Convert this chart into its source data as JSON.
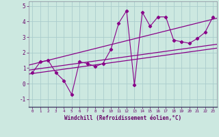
{
  "xlabel": "Windchill (Refroidissement éolien,°C)",
  "background_color": "#cce8e0",
  "line_color": "#880088",
  "grid_color": "#aacccc",
  "x_data": [
    0,
    1,
    2,
    3,
    4,
    5,
    6,
    7,
    8,
    9,
    10,
    11,
    12,
    13,
    14,
    15,
    16,
    17,
    18,
    19,
    20,
    21,
    22,
    23
  ],
  "y_scatter": [
    0.7,
    1.4,
    1.5,
    0.7,
    0.2,
    -0.7,
    1.4,
    1.3,
    1.1,
    1.3,
    2.2,
    3.9,
    4.7,
    -0.1,
    4.6,
    3.7,
    4.3,
    4.3,
    2.8,
    2.7,
    2.6,
    2.9,
    3.3,
    4.3
  ],
  "ylim": [
    -1.5,
    5.3
  ],
  "xlim": [
    -0.5,
    23.5
  ],
  "xticks": [
    0,
    1,
    2,
    3,
    4,
    5,
    6,
    7,
    8,
    9,
    10,
    11,
    12,
    13,
    14,
    15,
    16,
    17,
    18,
    19,
    20,
    21,
    22,
    23
  ],
  "yticks": [
    -1,
    0,
    1,
    2,
    3,
    4,
    5
  ],
  "reg_lines": [
    [
      0.65,
      2.25
    ],
    [
      0.9,
      2.5
    ],
    [
      1.25,
      4.15
    ]
  ]
}
